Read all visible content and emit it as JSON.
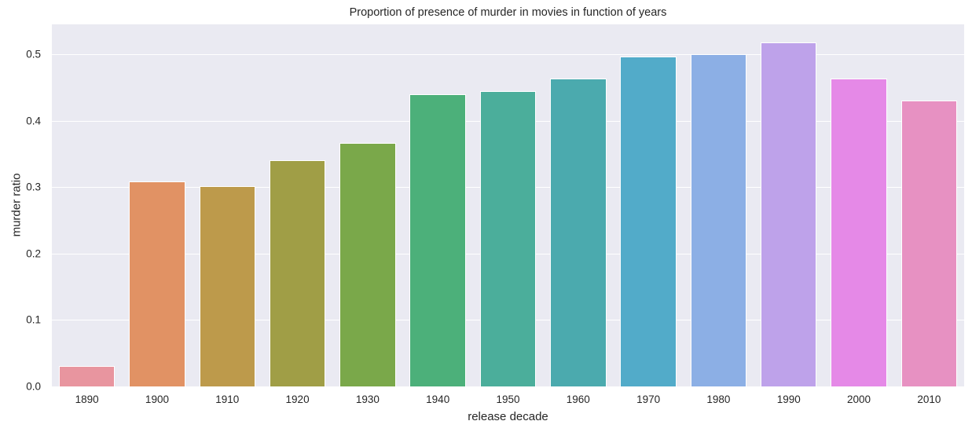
{
  "chart_data": {
    "type": "bar",
    "title": "Proportion of presence of murder in movies in function of years",
    "xlabel": "release decade",
    "ylabel": "murder ratio",
    "categories": [
      "1890",
      "1900",
      "1910",
      "1920",
      "1930",
      "1940",
      "1950",
      "1960",
      "1970",
      "1980",
      "1990",
      "2000",
      "2010"
    ],
    "values": [
      0.031,
      0.308,
      0.301,
      0.34,
      0.367,
      0.44,
      0.445,
      0.464,
      0.496,
      0.5,
      0.518,
      0.463,
      0.43
    ],
    "colors": [
      "#E8959F",
      "#E19264",
      "#BD9A4B",
      "#A09E46",
      "#7AA84A",
      "#4CB07A",
      "#4BAE9B",
      "#4BAAAE",
      "#52ABC9",
      "#8CAFE5",
      "#BEA2EA",
      "#E589E7",
      "#E791C2"
    ],
    "ylim": [
      0,
      0.545
    ],
    "yticks": [
      0.0,
      0.1,
      0.2,
      0.3,
      0.4,
      0.5
    ],
    "ytick_labels": [
      "0.0",
      "0.1",
      "0.2",
      "0.3",
      "0.4",
      "0.5"
    ],
    "grid": true,
    "legend": null,
    "style": {
      "background": "#EAEAF2",
      "gridline": "#FFFFFF"
    }
  }
}
